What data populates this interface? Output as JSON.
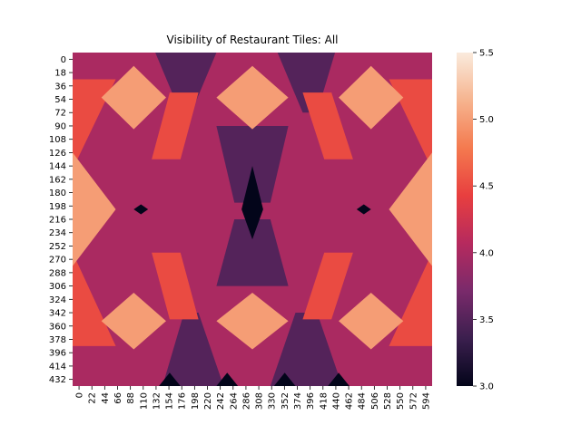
{
  "chart_data": {
    "type": "heatmap",
    "title": "Visibility of Restaurant Tiles: All",
    "xlabel": "",
    "ylabel": "",
    "grid": false,
    "x_tick_labels": [
      "0",
      "22",
      "44",
      "66",
      "88",
      "110",
      "132",
      "154",
      "176",
      "198",
      "220",
      "242",
      "264",
      "286",
      "308",
      "330",
      "352",
      "374",
      "396",
      "418",
      "440",
      "462",
      "484",
      "506",
      "528",
      "550",
      "572",
      "594"
    ],
    "y_tick_labels": [
      "0",
      "18",
      "36",
      "54",
      "72",
      "90",
      "108",
      "126",
      "144",
      "162",
      "180",
      "198",
      "216",
      "234",
      "252",
      "270",
      "288",
      "306",
      "324",
      "342",
      "360",
      "378",
      "396",
      "414",
      "432"
    ],
    "x_range": [
      0,
      600
    ],
    "y_range": [
      0,
      450
    ],
    "colorbar": {
      "min": 3.0,
      "max": 5.5,
      "ticks": [
        "3.0",
        "3.5",
        "4.0",
        "4.5",
        "5.0",
        "5.5"
      ],
      "colormap": "rocket",
      "stops": [
        "#03051a",
        "#3b1f4e",
        "#7a2a6b",
        "#b62a5e",
        "#e83f3f",
        "#f47a4f",
        "#f6b48f",
        "#faebdd"
      ]
    },
    "value_levels": [
      3.0,
      3.5,
      4.0,
      4.5,
      5.0,
      5.5
    ],
    "pattern_description_levels": {
      "background": 4.0,
      "diamonds": 5.0,
      "bands": 4.5,
      "dark_bands": 3.5,
      "darkest_points": 3.0
    }
  }
}
